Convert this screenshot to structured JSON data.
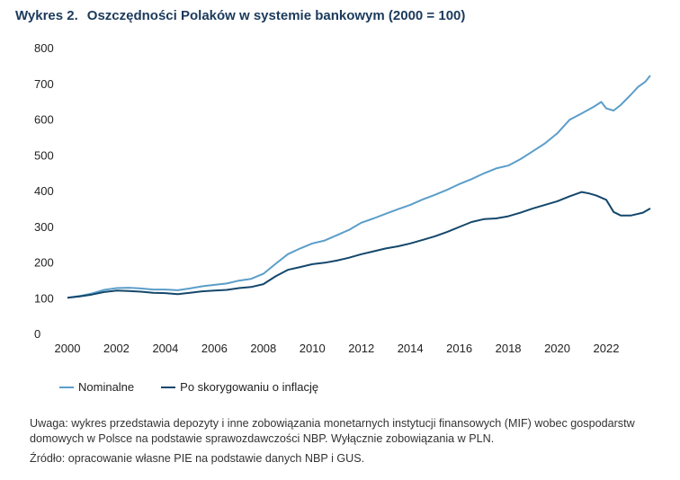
{
  "header": {
    "figure_number": "Wykres 2.",
    "title": "Oszczędności Polaków w systemie bankowym (2000 = 100)"
  },
  "chart_data": {
    "type": "line",
    "xlim": [
      2000,
      2023.8
    ],
    "ylim": [
      0,
      800
    ],
    "x_ticks": [
      "2000",
      "2002",
      "2004",
      "2006",
      "2008",
      "2010",
      "2012",
      "2014",
      "2016",
      "2018",
      "2020",
      "2022"
    ],
    "y_ticks": [
      "0",
      "100",
      "200",
      "300",
      "400",
      "500",
      "600",
      "700",
      "800"
    ],
    "grid": false,
    "legend_position": "bottom-left",
    "series": [
      {
        "name": "Nominalne",
        "color": "#5b9ec9",
        "x": [
          2000,
          2000.5,
          2001,
          2001.5,
          2002,
          2002.5,
          2003,
          2003.5,
          2004,
          2004.5,
          2005,
          2005.5,
          2006,
          2006.5,
          2007,
          2007.5,
          2008,
          2008.5,
          2009,
          2009.5,
          2010,
          2010.5,
          2011,
          2011.5,
          2012,
          2012.5,
          2013,
          2013.5,
          2014,
          2014.5,
          2015,
          2015.5,
          2016,
          2016.5,
          2017,
          2017.5,
          2018,
          2018.5,
          2019,
          2019.5,
          2020,
          2020.5,
          2021,
          2021.5,
          2021.8,
          2022,
          2022.3,
          2022.6,
          2023,
          2023.3,
          2023.6,
          2023.8
        ],
        "values": [
          100,
          105,
          112,
          122,
          127,
          128,
          126,
          123,
          123,
          121,
          126,
          132,
          136,
          140,
          148,
          153,
          167,
          195,
          222,
          238,
          252,
          260,
          275,
          290,
          310,
          322,
          335,
          348,
          360,
          375,
          388,
          402,
          418,
          432,
          448,
          462,
          470,
          488,
          510,
          532,
          560,
          598,
          616,
          635,
          648,
          630,
          624,
          640,
          668,
          690,
          705,
          722
        ]
      },
      {
        "name": "Po skorygowaniu o inflację",
        "color": "#14476b",
        "x": [
          2000,
          2000.5,
          2001,
          2001.5,
          2002,
          2002.5,
          2003,
          2003.5,
          2004,
          2004.5,
          2005,
          2005.5,
          2006,
          2006.5,
          2007,
          2007.5,
          2008,
          2008.5,
          2009,
          2009.5,
          2010,
          2010.5,
          2011,
          2011.5,
          2012,
          2012.5,
          2013,
          2013.5,
          2014,
          2014.5,
          2015,
          2015.5,
          2016,
          2016.5,
          2017,
          2017.5,
          2018,
          2018.5,
          2019,
          2019.5,
          2020,
          2020.5,
          2021,
          2021.3,
          2021.6,
          2022,
          2022.3,
          2022.6,
          2023,
          2023.5,
          2023.8
        ],
        "values": [
          100,
          104,
          109,
          116,
          120,
          119,
          117,
          114,
          113,
          110,
          114,
          118,
          120,
          122,
          127,
          130,
          138,
          160,
          178,
          186,
          194,
          198,
          204,
          212,
          222,
          230,
          238,
          244,
          252,
          262,
          272,
          284,
          298,
          312,
          320,
          322,
          328,
          338,
          350,
          360,
          370,
          384,
          396,
          392,
          386,
          374,
          340,
          330,
          330,
          338,
          350
        ]
      }
    ]
  },
  "legend": {
    "items": [
      {
        "label": "Nominalne",
        "color": "#5b9ec9"
      },
      {
        "label": "Po skorygowaniu o inflację",
        "color": "#14476b"
      }
    ]
  },
  "notes": {
    "uwaga": "Uwaga: wykres przedstawia depozyty i inne zobowiązania monetarnych instytucji finansowych (MIF) wobec gospodarstw domowych w Polsce na podstawie sprawozdawczości NBP. Wyłącznie zobowiązania w PLN.",
    "zrodlo": "Źródło: opracowanie własne PIE na podstawie danych NBP i GUS."
  }
}
